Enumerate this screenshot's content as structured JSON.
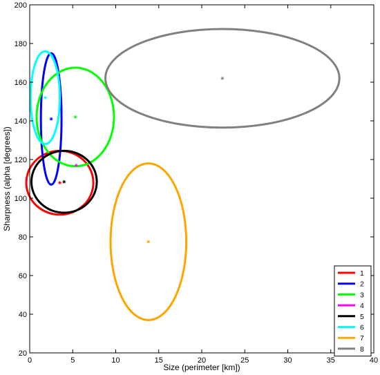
{
  "chart_data": {
    "type": "scatter",
    "title": "",
    "xlabel": "Size (perimeter [km])",
    "ylabel": "Sharpness (alpha [degrees])",
    "xlim": [
      0,
      40
    ],
    "ylim": [
      20,
      200
    ],
    "xticks": [
      0,
      5,
      10,
      15,
      20,
      25,
      30,
      35,
      40
    ],
    "yticks": [
      20,
      40,
      60,
      80,
      100,
      120,
      140,
      160,
      180,
      200
    ],
    "grid": false,
    "legend_position": "bottom-right",
    "series": [
      {
        "name": "1",
        "color": "#ff0000",
        "center": [
          3.5,
          108
        ],
        "ellipse": {
          "x_radius": 3.9,
          "y_radius": 16.5
        }
      },
      {
        "name": "2",
        "color": "#0000ff",
        "center": [
          2.5,
          141
        ],
        "ellipse": {
          "x_radius": 1.2,
          "y_radius": 34
        }
      },
      {
        "name": "3",
        "color": "#00ff00",
        "center": [
          5.3,
          142
        ],
        "ellipse": {
          "x_radius": 4.5,
          "y_radius": 25.5
        }
      },
      {
        "name": "4",
        "color": "#ff00ff",
        "center": [
          5.4,
          117
        ],
        "ellipse": null
      },
      {
        "name": "5",
        "color": "#000000",
        "center": [
          4.0,
          108.5
        ],
        "ellipse": {
          "x_radius": 3.8,
          "y_radius": 16
        }
      },
      {
        "name": "6",
        "color": "#00ffff",
        "center": [
          1.8,
          152
        ],
        "ellipse": {
          "x_radius": 1.7,
          "y_radius": 24
        }
      },
      {
        "name": "7",
        "color": "#ffa500",
        "center": [
          13.8,
          77.5
        ],
        "ellipse": {
          "x_radius": 4.4,
          "y_radius": 40.5
        }
      },
      {
        "name": "8",
        "color": "#808080",
        "center": [
          22.4,
          162
        ],
        "ellipse": {
          "x_radius": 13.6,
          "y_radius": 25.5
        }
      }
    ]
  }
}
